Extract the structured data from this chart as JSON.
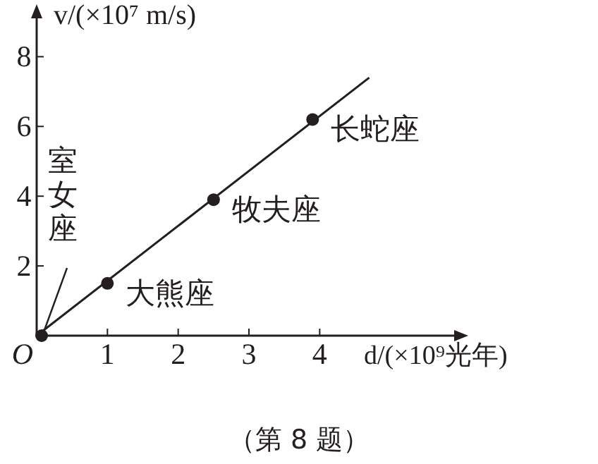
{
  "chart_data": {
    "type": "scatter",
    "xlabel": "d/(×10⁹光年)",
    "ylabel": "v/(×10⁷ m/s)",
    "xlim": [
      0,
      5.9
    ],
    "ylim": [
      0,
      9.1
    ],
    "xticks": [
      {
        "value": 0,
        "label": "O"
      },
      1,
      2,
      3,
      4
    ],
    "yticks": [
      2,
      4,
      6,
      8
    ],
    "marker": "circle",
    "series": [
      {
        "type": "line",
        "color": "#231f20",
        "x": [
          0,
          4.7
        ],
        "values": [
          0,
          7.4
        ],
        "marker": "none",
        "line_style": "solid"
      },
      {
        "color": "#231f20",
        "x": [
          0.07,
          1,
          2.5,
          3.9
        ],
        "values": [
          0,
          1.5,
          3.9,
          6.2
        ]
      }
    ],
    "annotations": [
      {
        "text": "室女座",
        "x": 0.07,
        "y": 0
      },
      {
        "text": "大熊座",
        "x": 1,
        "y": 1.5
      },
      {
        "text": "牧夫座",
        "x": 2.5,
        "y": 3.9
      },
      {
        "text": "长蛇座",
        "x": 3.9,
        "y": 6.2
      },
      "（第 8 题）"
    ]
  }
}
